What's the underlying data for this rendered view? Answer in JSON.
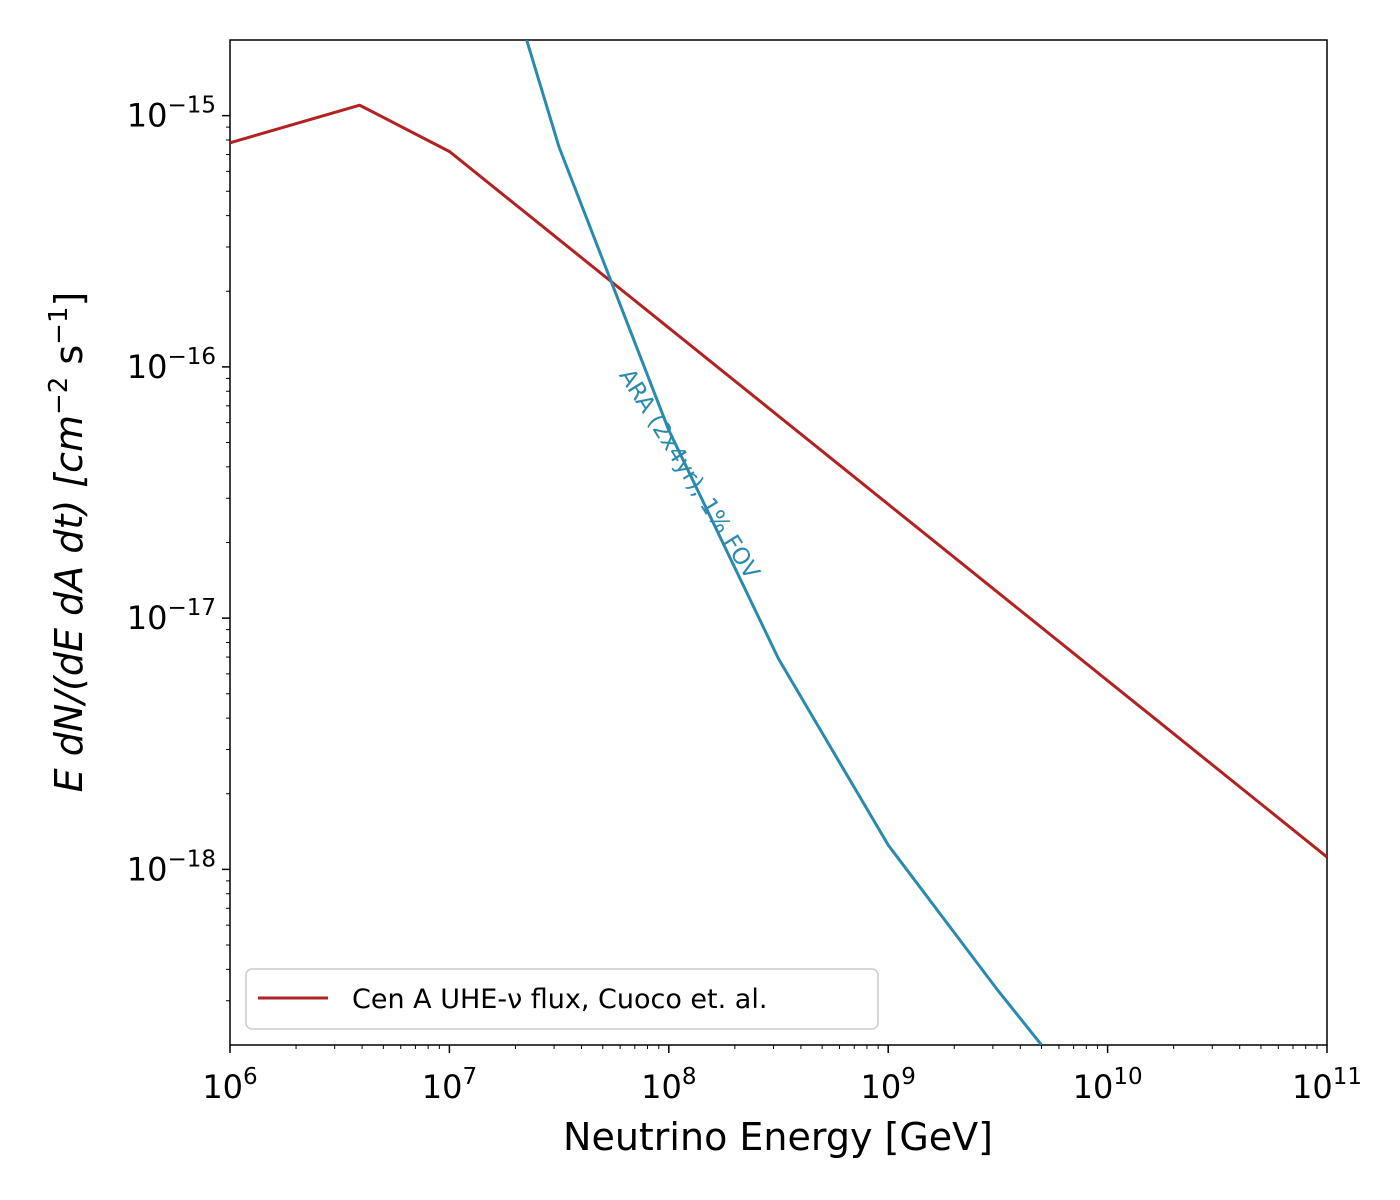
{
  "chart_data": {
    "type": "line",
    "xscale": "log",
    "yscale": "log",
    "xlim": [
      1000000.0,
      100000000000.0
    ],
    "ylim": [
      2e-19,
      2e-15
    ],
    "xlabel": "Neutrino Energy [GeV]",
    "ylabel": {
      "pre": "E dN/(dE dA dt) [cm",
      "exp1": "−2",
      "mid": " s",
      "exp2": "−1",
      "post": "]"
    },
    "x_ticks": [
      {
        "value": 1000000.0,
        "base": "10",
        "exp": "6"
      },
      {
        "value": 10000000.0,
        "base": "10",
        "exp": "7"
      },
      {
        "value": 100000000.0,
        "base": "10",
        "exp": "8"
      },
      {
        "value": 1000000000.0,
        "base": "10",
        "exp": "9"
      },
      {
        "value": 10000000000.0,
        "base": "10",
        "exp": "10"
      },
      {
        "value": 100000000000.0,
        "base": "10",
        "exp": "11"
      }
    ],
    "y_ticks": [
      {
        "value": 1e-15,
        "base": "10",
        "exp": "−15"
      },
      {
        "value": 1e-16,
        "base": "10",
        "exp": "−16"
      },
      {
        "value": 1e-17,
        "base": "10",
        "exp": "−17"
      },
      {
        "value": 1e-18,
        "base": "10",
        "exp": "−18"
      }
    ],
    "series": [
      {
        "name": "Cen A UHE-ν flux, Cuoco et. al.",
        "color": "#b22222",
        "x": [
          1000000.0,
          3900000.0,
          10000000.0,
          100000000000.0
        ],
        "y": [
          7.8e-16,
          1.1e-15,
          7.2e-16,
          1.12e-18
        ]
      },
      {
        "annotation": "ARA (2x4yr), 1% FOV",
        "color": "#2a8aad",
        "x": [
          22500000.0,
          31600000.0,
          100000000.0,
          316000000.0,
          1000000000.0,
          3160000000.0,
          5000000000.0
        ],
        "y": [
          2e-15,
          7.5e-16,
          5.6e-17,
          6.9e-18,
          1.25e-18,
          3.3e-19,
          2e-19
        ]
      }
    ],
    "legend_position": "lower-left",
    "grid": false
  }
}
